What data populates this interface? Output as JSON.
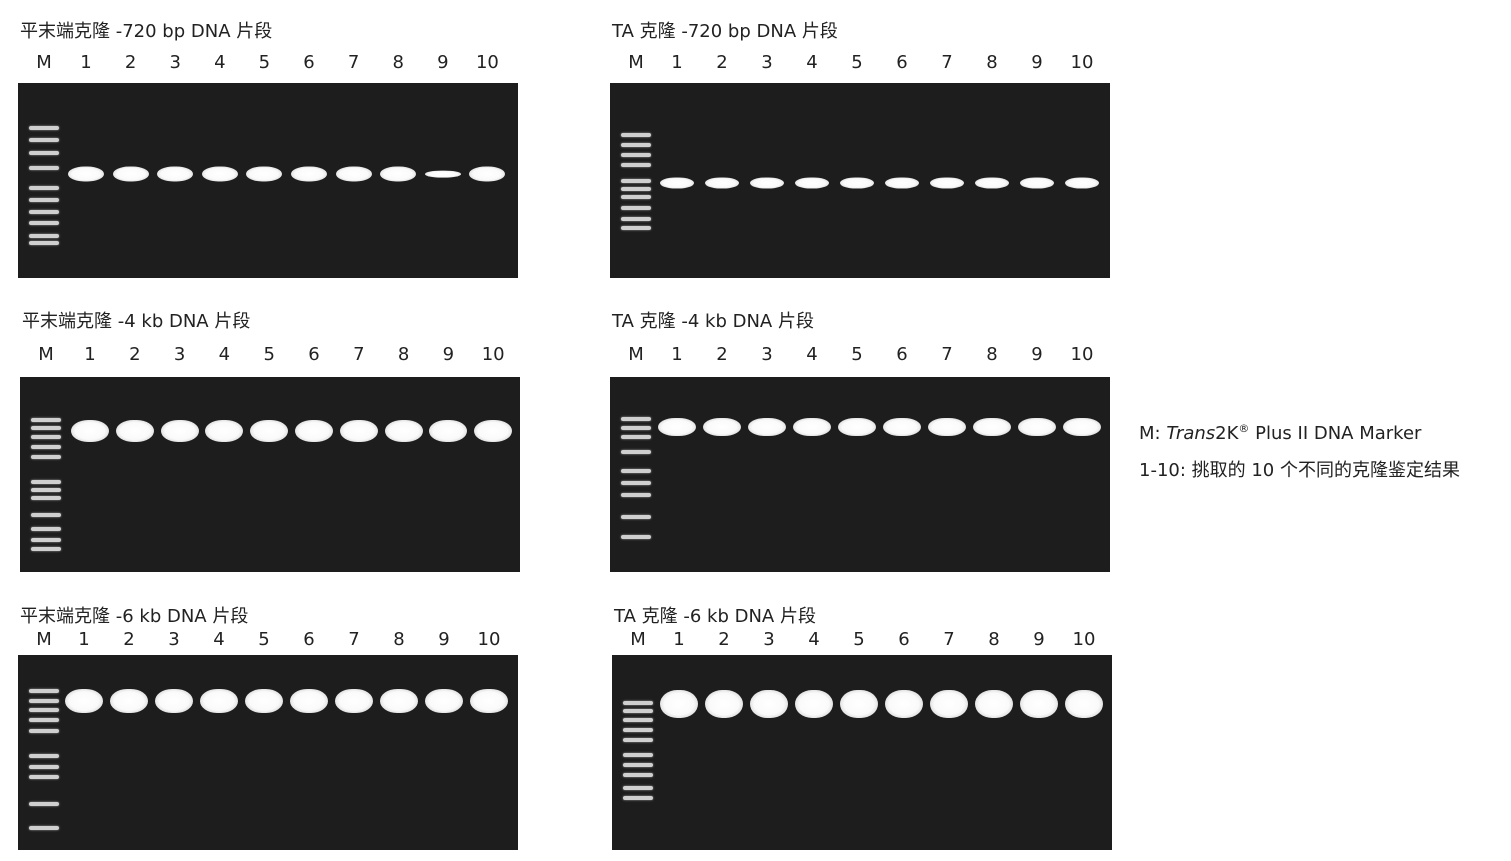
{
  "panels": [
    {
      "title": "平末端克隆 -720 bp DNA 片段",
      "lanes": [
        "M",
        "1",
        "2",
        "3",
        "4",
        "5",
        "6",
        "7",
        "8",
        "9",
        "10"
      ]
    },
    {
      "title": "TA 克隆 -720 bp DNA 片段",
      "lanes": [
        "M",
        "1",
        "2",
        "3",
        "4",
        "5",
        "6",
        "7",
        "8",
        "9",
        "10"
      ]
    },
    {
      "title": "平末端克隆 -4 kb DNA 片段",
      "lanes": [
        "M",
        "1",
        "2",
        "3",
        "4",
        "5",
        "6",
        "7",
        "8",
        "9",
        "10"
      ]
    },
    {
      "title": "TA 克隆 -4 kb DNA 片段",
      "lanes": [
        "M",
        "1",
        "2",
        "3",
        "4",
        "5",
        "6",
        "7",
        "8",
        "9",
        "10"
      ]
    },
    {
      "title": "平末端克隆 -6 kb DNA 片段",
      "lanes": [
        "M",
        "1",
        "2",
        "3",
        "4",
        "5",
        "6",
        "7",
        "8",
        "9",
        "10"
      ]
    },
    {
      "title": "TA 克隆 -6 kb DNA 片段",
      "lanes": [
        "M",
        "1",
        "2",
        "3",
        "4",
        "5",
        "6",
        "7",
        "8",
        "9",
        "10"
      ]
    }
  ],
  "legend": {
    "marker_prefix": "M: ",
    "marker_italic": "Trans",
    "marker_mid": "2K",
    "marker_sup": "®",
    "marker_suffix": " Plus II DNA Marker",
    "lanes_desc": "1-10: 挑取的 10 个不同的克隆鉴定结果"
  },
  "colors": {
    "gel_background": "#1d1d1d",
    "band": "#ffffff"
  }
}
